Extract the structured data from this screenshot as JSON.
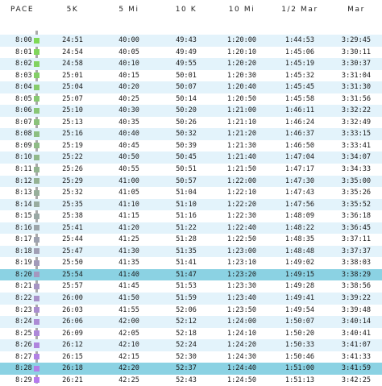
{
  "headers": {
    "pace": "PACE",
    "five_k": "5K",
    "five_mi": "5 Mi",
    "ten_k": "10 K",
    "ten_mi": "10 Mi",
    "half_mar": "1/2 Mar",
    "mar": "Mar"
  },
  "colors": {
    "row_alt": "#e3f3fb",
    "row_highlight": "#8bd2e3",
    "rail": "#a9a9a9",
    "marker_gradient": [
      "#7ed957",
      "#b57bee"
    ]
  },
  "rows": [
    {
      "pace": "8:00",
      "five_k": "24:51",
      "five_mi": "40:00",
      "ten_k": "49:43",
      "ten_mi": "1:20:00",
      "half_mar": "1:44:53",
      "mar": "3:29:45"
    },
    {
      "pace": "8:01",
      "five_k": "24:54",
      "five_mi": "40:05",
      "ten_k": "49:49",
      "ten_mi": "1:20:10",
      "half_mar": "1:45:06",
      "mar": "3:30:11"
    },
    {
      "pace": "8:02",
      "five_k": "24:58",
      "five_mi": "40:10",
      "ten_k": "49:55",
      "ten_mi": "1:20:20",
      "half_mar": "1:45:19",
      "mar": "3:30:37"
    },
    {
      "pace": "8:03",
      "five_k": "25:01",
      "five_mi": "40:15",
      "ten_k": "50:01",
      "ten_mi": "1:20:30",
      "half_mar": "1:45:32",
      "mar": "3:31:04"
    },
    {
      "pace": "8:04",
      "five_k": "25:04",
      "five_mi": "40:20",
      "ten_k": "50:07",
      "ten_mi": "1:20:40",
      "half_mar": "1:45:45",
      "mar": "3:31:30"
    },
    {
      "pace": "8:05",
      "five_k": "25:07",
      "five_mi": "40:25",
      "ten_k": "50:14",
      "ten_mi": "1:20:50",
      "half_mar": "1:45:58",
      "mar": "3:31:56"
    },
    {
      "pace": "8:06",
      "five_k": "25:10",
      "five_mi": "40:30",
      "ten_k": "50:20",
      "ten_mi": "1:21:00",
      "half_mar": "1:46:11",
      "mar": "3:32:22"
    },
    {
      "pace": "8:07",
      "five_k": "25:13",
      "five_mi": "40:35",
      "ten_k": "50:26",
      "ten_mi": "1:21:10",
      "half_mar": "1:46:24",
      "mar": "3:32:49"
    },
    {
      "pace": "8:08",
      "five_k": "25:16",
      "five_mi": "40:40",
      "ten_k": "50:32",
      "ten_mi": "1:21:20",
      "half_mar": "1:46:37",
      "mar": "3:33:15"
    },
    {
      "pace": "8:09",
      "five_k": "25:19",
      "five_mi": "40:45",
      "ten_k": "50:39",
      "ten_mi": "1:21:30",
      "half_mar": "1:46:50",
      "mar": "3:33:41"
    },
    {
      "pace": "8:10",
      "five_k": "25:22",
      "five_mi": "40:50",
      "ten_k": "50:45",
      "ten_mi": "1:21:40",
      "half_mar": "1:47:04",
      "mar": "3:34:07"
    },
    {
      "pace": "8:11",
      "five_k": "25:26",
      "five_mi": "40:55",
      "ten_k": "50:51",
      "ten_mi": "1:21:50",
      "half_mar": "1:47:17",
      "mar": "3:34:33"
    },
    {
      "pace": "8:12",
      "five_k": "25:29",
      "five_mi": "41:00",
      "ten_k": "50:57",
      "ten_mi": "1:22:00",
      "half_mar": "1:47:30",
      "mar": "3:35:00"
    },
    {
      "pace": "8:13",
      "five_k": "25:32",
      "five_mi": "41:05",
      "ten_k": "51:04",
      "ten_mi": "1:22:10",
      "half_mar": "1:47:43",
      "mar": "3:35:26"
    },
    {
      "pace": "8:14",
      "five_k": "25:35",
      "five_mi": "41:10",
      "ten_k": "51:10",
      "ten_mi": "1:22:20",
      "half_mar": "1:47:56",
      "mar": "3:35:52"
    },
    {
      "pace": "8:15",
      "five_k": "25:38",
      "five_mi": "41:15",
      "ten_k": "51:16",
      "ten_mi": "1:22:30",
      "half_mar": "1:48:09",
      "mar": "3:36:18"
    },
    {
      "pace": "8:16",
      "five_k": "25:41",
      "five_mi": "41:20",
      "ten_k": "51:22",
      "ten_mi": "1:22:40",
      "half_mar": "1:48:22",
      "mar": "3:36:45"
    },
    {
      "pace": "8:17",
      "five_k": "25:44",
      "five_mi": "41:25",
      "ten_k": "51:28",
      "ten_mi": "1:22:50",
      "half_mar": "1:48:35",
      "mar": "3:37:11"
    },
    {
      "pace": "8:18",
      "five_k": "25:47",
      "five_mi": "41:30",
      "ten_k": "51:35",
      "ten_mi": "1:23:00",
      "half_mar": "1:48:48",
      "mar": "3:37:37"
    },
    {
      "pace": "8:19",
      "five_k": "25:50",
      "five_mi": "41:35",
      "ten_k": "51:41",
      "ten_mi": "1:23:10",
      "half_mar": "1:49:02",
      "mar": "3:38:03"
    },
    {
      "pace": "8:20",
      "five_k": "25:54",
      "five_mi": "41:40",
      "ten_k": "51:47",
      "ten_mi": "1:23:20",
      "half_mar": "1:49:15",
      "mar": "3:38:29"
    },
    {
      "pace": "8:21",
      "five_k": "25:57",
      "five_mi": "41:45",
      "ten_k": "51:53",
      "ten_mi": "1:23:30",
      "half_mar": "1:49:28",
      "mar": "3:38:56"
    },
    {
      "pace": "8:22",
      "five_k": "26:00",
      "five_mi": "41:50",
      "ten_k": "51:59",
      "ten_mi": "1:23:40",
      "half_mar": "1:49:41",
      "mar": "3:39:22"
    },
    {
      "pace": "8:23",
      "five_k": "26:03",
      "five_mi": "41:55",
      "ten_k": "52:06",
      "ten_mi": "1:23:50",
      "half_mar": "1:49:54",
      "mar": "3:39:48"
    },
    {
      "pace": "8:24",
      "five_k": "26:06",
      "five_mi": "42:00",
      "ten_k": "52:12",
      "ten_mi": "1:24:00",
      "half_mar": "1:50:07",
      "mar": "3:40:14"
    },
    {
      "pace": "8:25",
      "five_k": "26:09",
      "five_mi": "42:05",
      "ten_k": "52:18",
      "ten_mi": "1:24:10",
      "half_mar": "1:50:20",
      "mar": "3:40:41"
    },
    {
      "pace": "8:26",
      "five_k": "26:12",
      "five_mi": "42:10",
      "ten_k": "52:24",
      "ten_mi": "1:24:20",
      "half_mar": "1:50:33",
      "mar": "3:41:07"
    },
    {
      "pace": "8:27",
      "five_k": "26:15",
      "five_mi": "42:15",
      "ten_k": "52:30",
      "ten_mi": "1:24:30",
      "half_mar": "1:50:46",
      "mar": "3:41:33"
    },
    {
      "pace": "8:28",
      "five_k": "26:18",
      "five_mi": "42:20",
      "ten_k": "52:37",
      "ten_mi": "1:24:40",
      "half_mar": "1:51:00",
      "mar": "3:41:59"
    },
    {
      "pace": "8:29",
      "five_k": "26:21",
      "five_mi": "42:25",
      "ten_k": "52:43",
      "ten_mi": "1:24:50",
      "half_mar": "1:51:13",
      "mar": "3:42:25"
    }
  ]
}
